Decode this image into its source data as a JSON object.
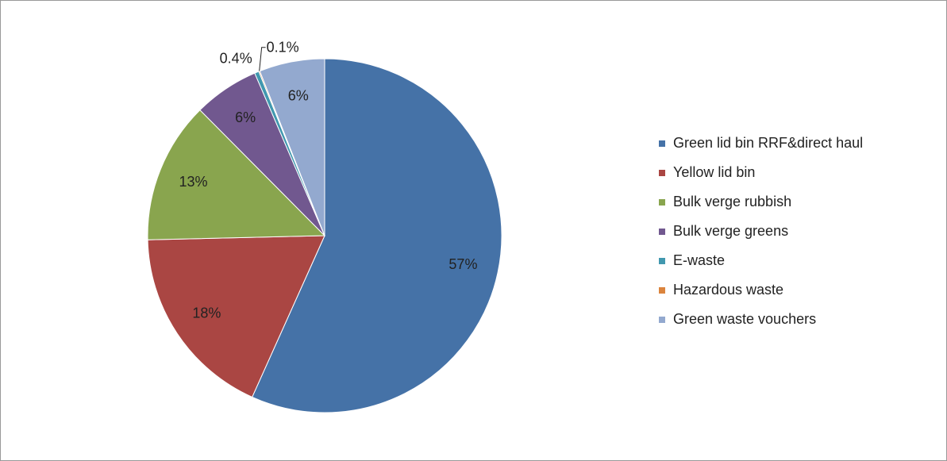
{
  "chart_data": {
    "type": "pie",
    "categories": [
      "Green lid bin RRF&direct haul",
      "Yellow lid bin",
      "Bulk verge rubbish",
      "Bulk verge greens",
      "E-waste",
      "Hazardous waste",
      "Green waste vouchers"
    ],
    "values": [
      57,
      18,
      13,
      6,
      0.4,
      0.1,
      6
    ],
    "value_labels": [
      "57%",
      "18%",
      "13%",
      "6%",
      "0.4%",
      "0.1%",
      "6%"
    ],
    "colors": [
      "#4572a7",
      "#aa4643",
      "#89a54e",
      "#71588f",
      "#4198af",
      "#db843d",
      "#93a9cf"
    ],
    "legend": "right"
  }
}
